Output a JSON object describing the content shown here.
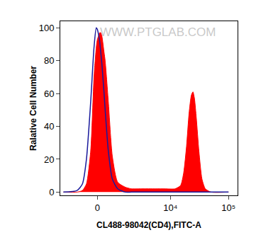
{
  "chart_data": {
    "type": "histogram",
    "x_label": "CL488-98042(CD4),FITC-A",
    "y_label": "Ralative Cell Number",
    "annotations": [
      {
        "text": "WWW.PTGLAB.COM"
      }
    ],
    "x": [
      -2000,
      -1000,
      -700,
      -500,
      -300,
      -150,
      -50,
      0,
      50,
      100,
      150,
      200,
      300,
      350,
      500,
      700,
      1000,
      1500,
      2000,
      3000,
      5000,
      8000,
      12000,
      15000,
      17000,
      19000,
      21000,
      23000,
      24500,
      26000,
      28000,
      31000,
      35000,
      40000,
      50000,
      100000
    ],
    "series": [
      {
        "type": "area",
        "color": "#ff0000",
        "values": [
          0,
          0,
          1,
          5,
          25,
          70,
          88,
          93,
          95,
          97,
          97,
          95,
          85,
          80,
          55,
          22,
          6,
          3,
          2,
          2,
          2,
          2,
          2,
          4,
          12,
          28,
          48,
          59,
          61,
          57,
          45,
          25,
          8,
          2,
          0,
          0
        ]
      },
      {
        "type": "line",
        "color": "#1a1a9c",
        "values": [
          0,
          1,
          5,
          20,
          55,
          88,
          100,
          99,
          96,
          92,
          85,
          78,
          60,
          50,
          25,
          8,
          2,
          0,
          0,
          0,
          0,
          0,
          0,
          0,
          0,
          0,
          0,
          0,
          0,
          0,
          0,
          0,
          0,
          0,
          0,
          0
        ]
      }
    ],
    "xlim": [
      -2300,
      143000
    ],
    "xticks": [
      0,
      {
        "value": 10000,
        "label": "10⁴"
      },
      {
        "value": 100000,
        "label": "10⁵"
      }
    ],
    "ylim": [
      -2,
      104
    ],
    "yticks": [
      0,
      20,
      40,
      60,
      80,
      100
    ],
    "grid": false
  }
}
